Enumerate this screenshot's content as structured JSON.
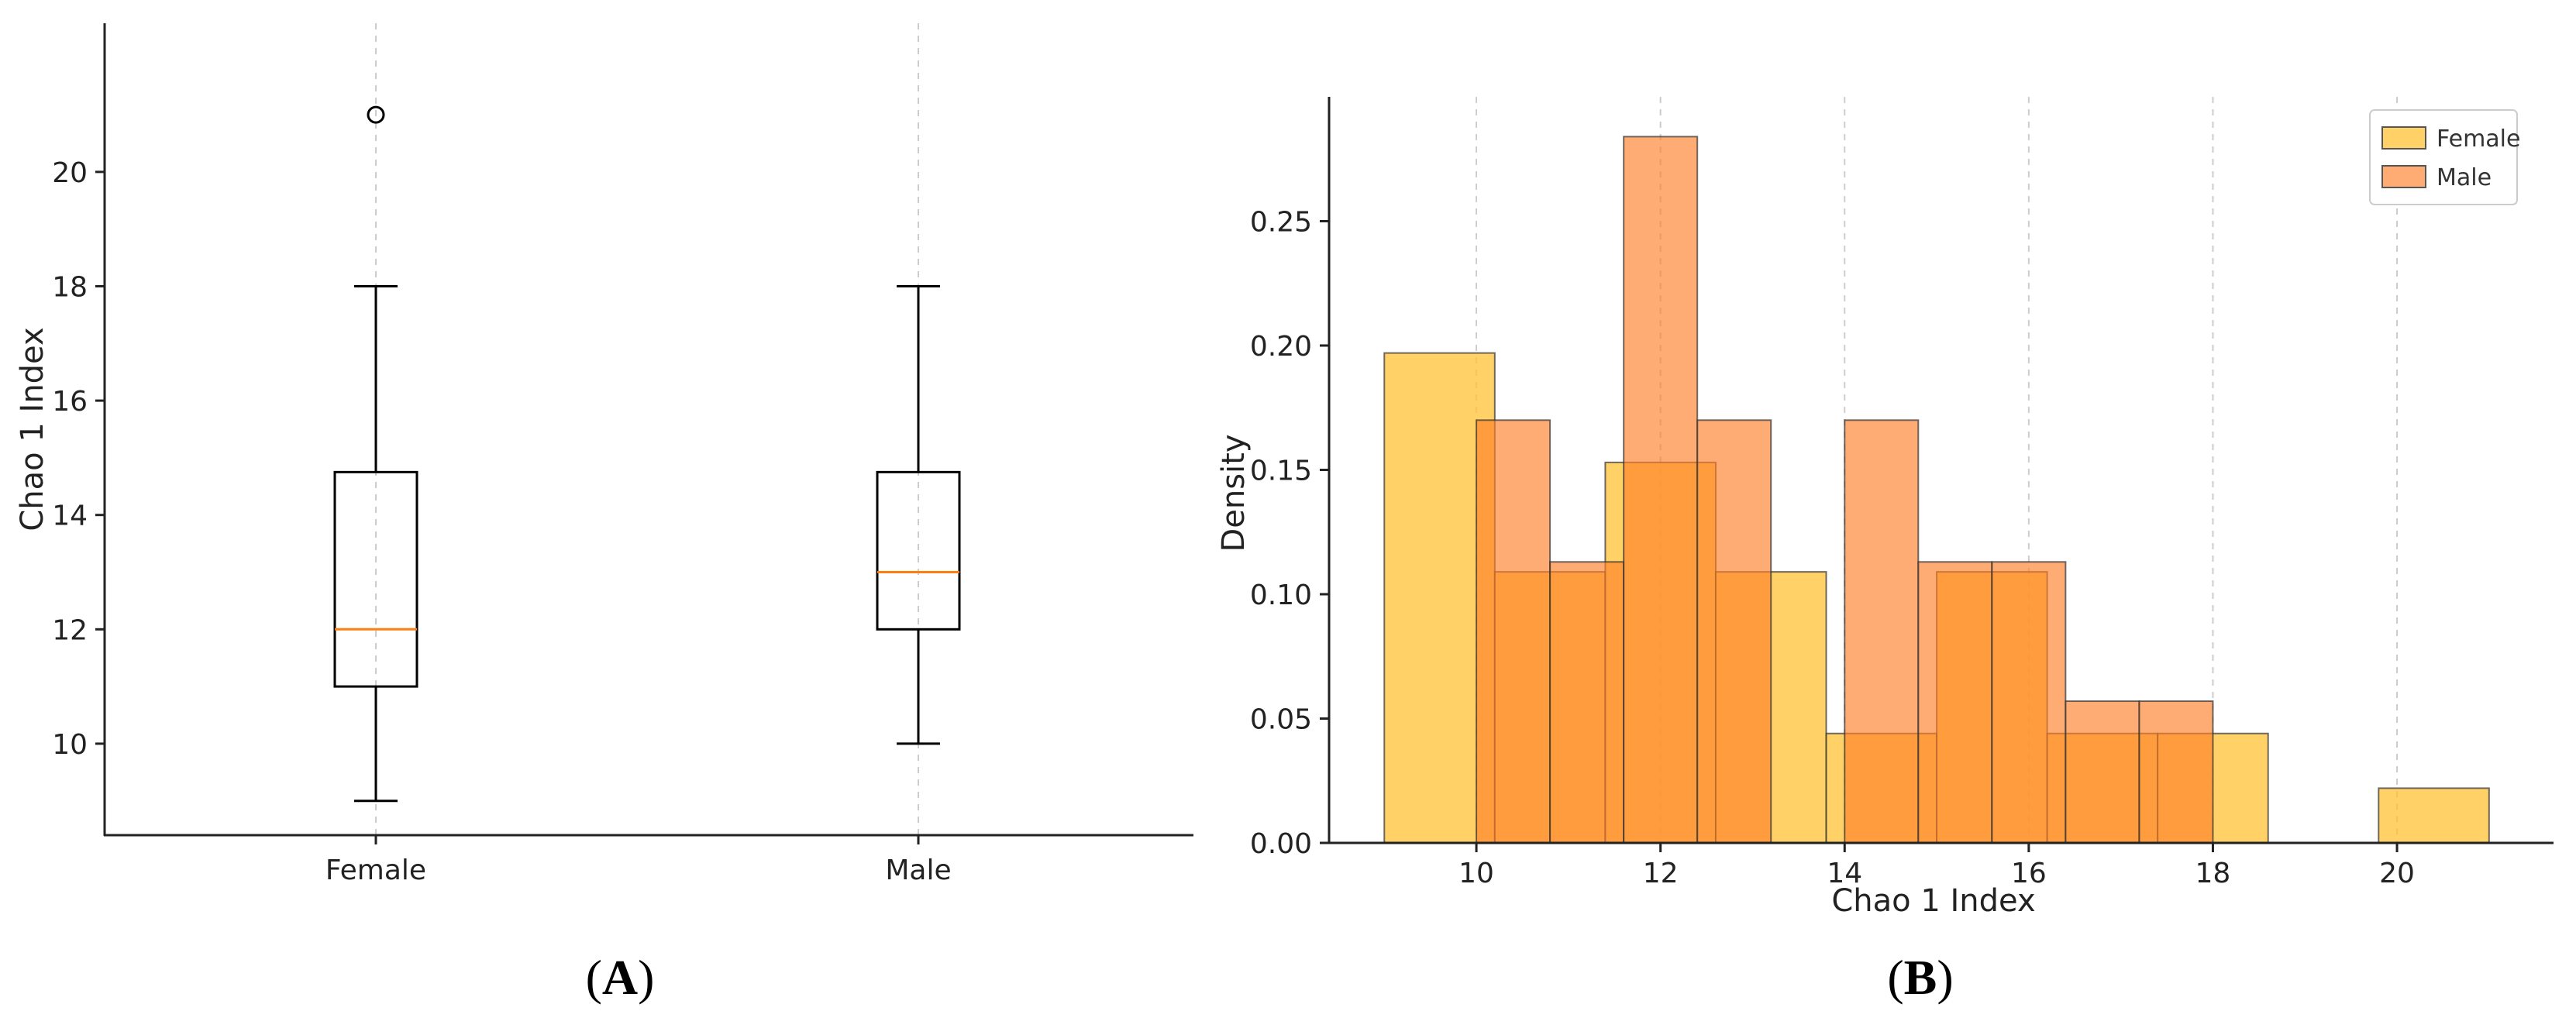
{
  "chart_data": [
    {
      "type": "box",
      "panel_label": {
        "open": "(",
        "letter": "A",
        "close": ")"
      },
      "ylabel": "Chao 1 Index",
      "ylim": [
        8.4,
        22.6
      ],
      "yticks": [
        10,
        12,
        14,
        16,
        18,
        20
      ],
      "categories": [
        "Female",
        "Male"
      ],
      "boxes": [
        {
          "category": "Female",
          "whisker_low": 9,
          "q1": 11,
          "median": 12,
          "q3": 14.75,
          "whisker_high": 18,
          "outliers": [
            21
          ]
        },
        {
          "category": "Male",
          "whisker_low": 10,
          "q1": 12,
          "median": 13,
          "q3": 14.75,
          "whisker_high": 18,
          "outliers": []
        }
      ],
      "grid": "vertical dashed",
      "colors": {
        "median": "#ff7f0e",
        "box": "#000000",
        "grid": "#cccccc"
      }
    },
    {
      "type": "histogram",
      "panel_label": {
        "open": "(",
        "letter": "B",
        "close": ")"
      },
      "xlabel": "Chao 1 Index",
      "ylabel": "Density",
      "xlim": [
        8.4,
        21.7
      ],
      "ylim": [
        0,
        0.3
      ],
      "xticks": [
        10,
        12,
        14,
        16,
        18,
        20
      ],
      "yticks": [
        "0.00",
        "0.05",
        "0.10",
        "0.15",
        "0.20",
        "0.25"
      ],
      "legend": {
        "placement": "top-right"
      },
      "grid": "vertical dashed",
      "series": [
        {
          "name": "Female",
          "color": "#ffc233",
          "opacity": 0.75,
          "bins": [
            {
              "x0": 9.0,
              "x1": 10.2,
              "density": 0.197
            },
            {
              "x0": 10.2,
              "x1": 11.4,
              "density": 0.109
            },
            {
              "x0": 11.4,
              "x1": 12.6,
              "density": 0.153
            },
            {
              "x0": 12.6,
              "x1": 13.8,
              "density": 0.109
            },
            {
              "x0": 13.8,
              "x1": 15.0,
              "density": 0.044
            },
            {
              "x0": 15.0,
              "x1": 16.2,
              "density": 0.109
            },
            {
              "x0": 16.2,
              "x1": 17.4,
              "density": 0.044
            },
            {
              "x0": 17.4,
              "x1": 18.6,
              "density": 0.044
            },
            {
              "x0": 18.6,
              "x1": 19.8,
              "density": 0.0
            },
            {
              "x0": 19.8,
              "x1": 21.0,
              "density": 0.022
            }
          ]
        },
        {
          "name": "Male",
          "color": "#ff7f2a",
          "opacity": 0.65,
          "bins": [
            {
              "x0": 10.0,
              "x1": 10.8,
              "density": 0.17
            },
            {
              "x0": 10.8,
              "x1": 11.6,
              "density": 0.113
            },
            {
              "x0": 11.6,
              "x1": 12.4,
              "density": 0.284
            },
            {
              "x0": 12.4,
              "x1": 13.2,
              "density": 0.17
            },
            {
              "x0": 13.2,
              "x1": 14.0,
              "density": 0.0
            },
            {
              "x0": 14.0,
              "x1": 14.8,
              "density": 0.17
            },
            {
              "x0": 14.8,
              "x1": 15.6,
              "density": 0.113
            },
            {
              "x0": 15.6,
              "x1": 16.4,
              "density": 0.113
            },
            {
              "x0": 16.4,
              "x1": 17.2,
              "density": 0.057
            },
            {
              "x0": 17.2,
              "x1": 18.0,
              "density": 0.057
            }
          ]
        }
      ]
    }
  ]
}
